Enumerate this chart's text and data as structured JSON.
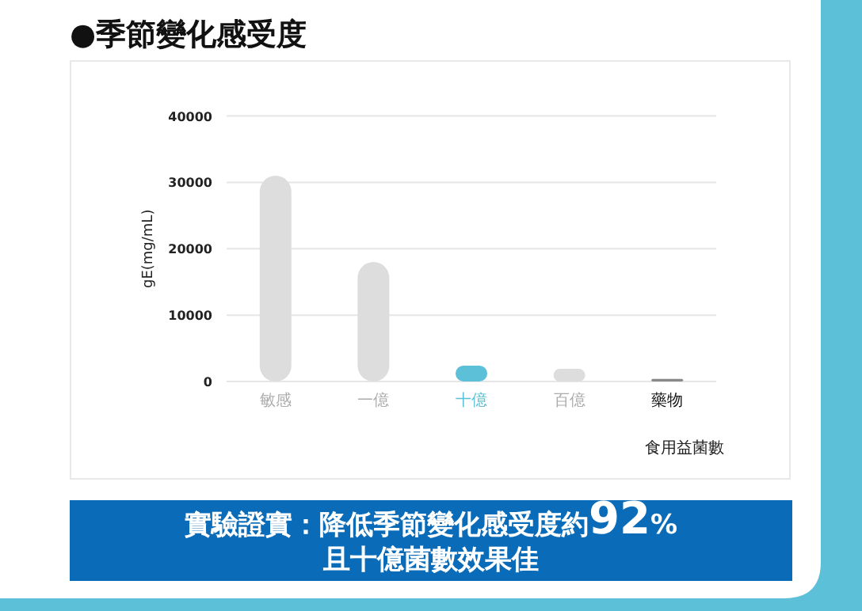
{
  "chart_data": {
    "type": "bar",
    "title": "●季節變化感受度",
    "ylabel": "gE(mg/mL)",
    "xlabel": "食用益菌數",
    "categories": [
      "敏感",
      "一億",
      "十億",
      "百億",
      "藥物"
    ],
    "values": [
      31000,
      18000,
      2400,
      1900,
      400
    ],
    "colors": [
      "#dddddd",
      "#dddddd",
      "#5bc0d8",
      "#dddddd",
      "#888888"
    ],
    "ylim": [
      0,
      40000
    ],
    "yticks": [
      0,
      10000,
      20000,
      30000,
      40000
    ],
    "grid": "y",
    "annotations": [
      "實驗證實：降低季節變化感受度約92%",
      "且十億菌數效果佳"
    ]
  }
}
